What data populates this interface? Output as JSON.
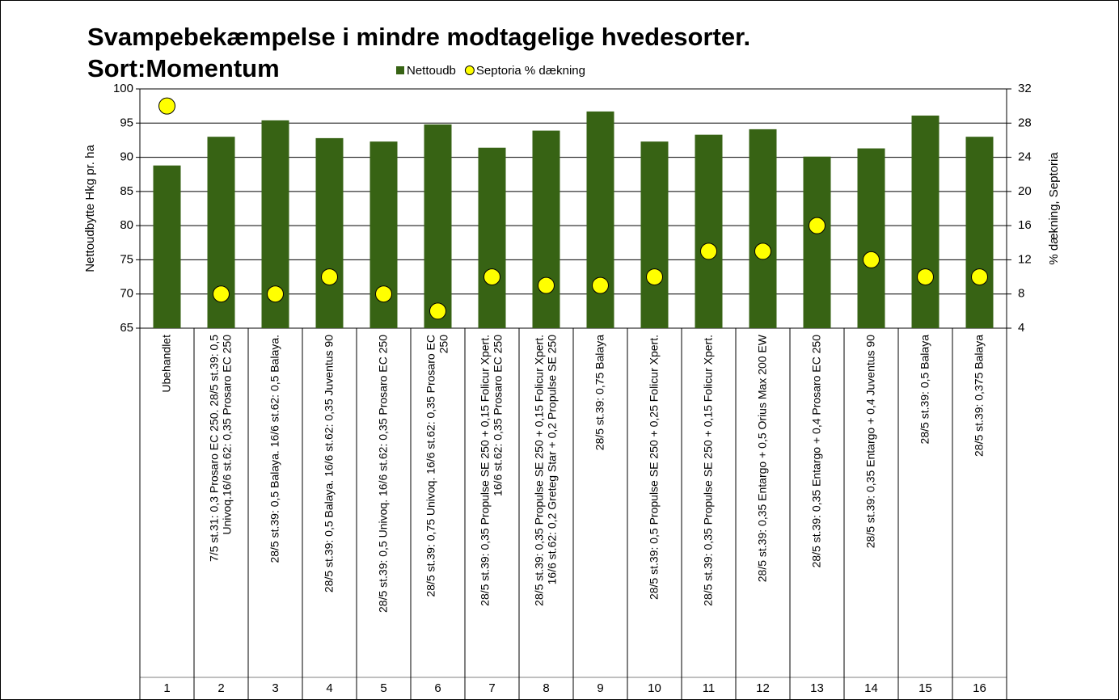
{
  "chart_data": {
    "type": "bar+scatter",
    "title": [
      "Svampebekæmpelse i mindre modtagelige hvedesorter.",
      "Sort:Momentum"
    ],
    "y_label": "Nettoudbytte Hkg pr. ha",
    "y2_label": "% dækning, Septoria",
    "categories": [
      "Ubehandlet",
      "7/5 st.31: 0,3 Prosaro EC 250. 28/5 st.39: 0,5 Univoq.16/6 st.62: 0,35 Prosaro EC 250",
      "28/5 st.39: 0,5 Balaya. 16/6 st.62: 0,5 Balaya.",
      "28/5 st.39: 0,5 Balaya. 16/6 st.62: 0,35 Juventus 90",
      "28/5 st.39: 0,5 Univoq. 16/6 st.62: 0,35 Prosaro EC 250",
      "28/5 st.39: 0,75 Univoq. 16/6 st.62: 0,35 Prosaro EC 250",
      "28/5 st.39: 0,35 Propulse SE 250 + 0,15 Folicur Xpert. 16/6 st.62: 0,35 Prosaro EC 250",
      "28/5 st.39: 0,35 Propulse SE 250 + 0,15 Folicur Xpert. 16/6 st.62: 0,2 Greteg Star + 0,2 Propulse SE 250",
      "28/5 st.39: 0,75 Balaya",
      "28/5 st.39: 0,5 Propulse SE 250 + 0,25 Folicur Xpert.",
      "28/5 st.39: 0,35 Propulse SE 250 + 0,15 Folicur Xpert.",
      "28/5 st.39: 0,35 Entargo + 0,5 Orius Max 200 EW",
      "28/5 st.39: 0,35 Entargo + 0,4 Prosaro EC 250",
      "28/5 st.39: 0,35 Entargo + 0,4 Juventus 90",
      "28/5 st.39: 0,5 Balaya",
      "28/5 st.39: 0,375 Balaya"
    ],
    "category_numbers": [
      "1",
      "2",
      "3",
      "4",
      "5",
      "6",
      "7",
      "8",
      "9",
      "10",
      "11",
      "12",
      "13",
      "14",
      "15",
      "16"
    ],
    "series": [
      {
        "name": "Nettoudb",
        "type": "bar",
        "color": "#376314",
        "values": [
          88.8,
          93.0,
          95.4,
          92.8,
          92.3,
          94.8,
          91.4,
          93.9,
          96.7,
          92.3,
          93.3,
          94.1,
          90.1,
          91.3,
          96.1,
          93.0
        ]
      },
      {
        "name": "Septoria % dækning",
        "type": "scatter",
        "axis": "y2",
        "color": "#ffff00",
        "values": [
          30,
          8,
          8,
          10,
          8,
          6,
          10,
          9,
          9,
          10,
          13,
          13,
          16,
          12,
          10,
          10
        ]
      }
    ],
    "ylim": [
      65,
      100
    ],
    "yticks": [
      65,
      70,
      75,
      80,
      85,
      90,
      95,
      100
    ],
    "y2lim": [
      4,
      32
    ],
    "y2ticks": [
      4,
      8,
      12,
      16,
      20,
      24,
      28,
      32
    ],
    "grid": true,
    "legend": "top"
  }
}
